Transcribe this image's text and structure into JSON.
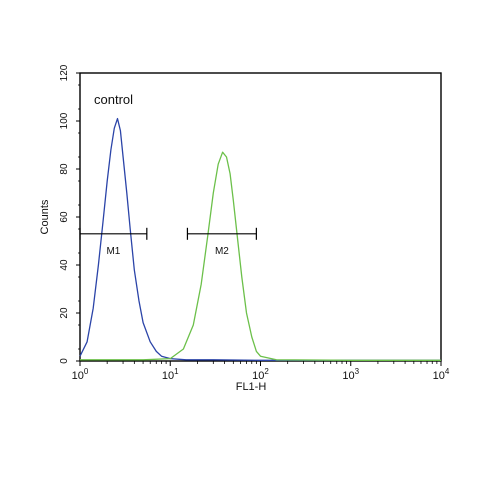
{
  "chart_data": {
    "type": "line",
    "xlabel": "FL1-H",
    "ylabel": "Counts",
    "x_scale": "log",
    "xlim": [
      1,
      10000
    ],
    "ylim": [
      0,
      120
    ],
    "x_ticks": [
      {
        "value": 1,
        "base": "10",
        "exp": "0"
      },
      {
        "value": 10,
        "base": "10",
        "exp": "1"
      },
      {
        "value": 100,
        "base": "10",
        "exp": "2"
      },
      {
        "value": 1000,
        "base": "10",
        "exp": "3"
      },
      {
        "value": 10000,
        "base": "10",
        "exp": "4"
      }
    ],
    "y_ticks": [
      0,
      20,
      40,
      60,
      80,
      100,
      120
    ],
    "grid": false,
    "series": [
      {
        "name": "control",
        "color": "#2b44a8",
        "x": [
          1,
          1.2,
          1.4,
          1.6,
          1.8,
          2.0,
          2.2,
          2.4,
          2.6,
          2.8,
          3.0,
          3.3,
          3.6,
          4.0,
          4.5,
          5.0,
          6.0,
          7.0,
          8.0,
          10,
          15,
          30,
          100,
          1000,
          10000
        ],
        "y": [
          2,
          8,
          22,
          40,
          58,
          75,
          88,
          97,
          101,
          96,
          85,
          70,
          55,
          38,
          25,
          16,
          8,
          4,
          2,
          1,
          0.5,
          0.5,
          0.3,
          0.3,
          0.3
        ]
      },
      {
        "name": "",
        "color": "#6cc04a",
        "x": [
          1,
          5,
          10,
          14,
          18,
          22,
          26,
          30,
          34,
          38,
          42,
          46,
          50,
          56,
          62,
          70,
          80,
          90,
          100,
          150,
          1000,
          10000
        ],
        "y": [
          0.5,
          0.5,
          1,
          5,
          15,
          32,
          52,
          70,
          82,
          87,
          85,
          78,
          67,
          50,
          35,
          20,
          10,
          4,
          2,
          0.5,
          0.3,
          0.3
        ]
      }
    ],
    "gates": [
      {
        "label": "M1",
        "x_start": 1,
        "x_end": 5.5,
        "y": 53
      },
      {
        "label": "M2",
        "x_start": 15.5,
        "x_end": 90,
        "y": 53
      }
    ]
  }
}
